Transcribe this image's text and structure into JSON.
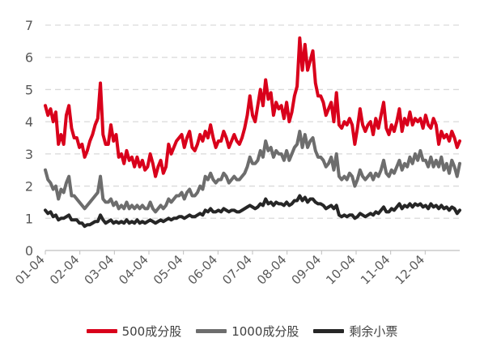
{
  "chart_data": {
    "type": "line",
    "y_ticks": [
      "0",
      "1",
      "2",
      "3",
      "4",
      "5",
      "6",
      "7"
    ],
    "ylim": [
      0,
      7
    ],
    "x_ticks": [
      "01-04",
      "02-04",
      "03-04",
      "04-04",
      "05-04",
      "06-04",
      "07-04",
      "08-04",
      "09-04",
      "10-04",
      "11-04",
      "12-04"
    ],
    "grid": "horizontal dashed",
    "legend_position": "bottom",
    "series": [
      {
        "name": "500成分股",
        "color": "#d9001b",
        "values": [
          4.5,
          4.2,
          4.4,
          4.0,
          4.3,
          3.3,
          3.6,
          3.3,
          4.2,
          4.5,
          3.8,
          3.5,
          3.5,
          3.2,
          3.3,
          2.9,
          3.1,
          3.4,
          3.6,
          3.9,
          4.1,
          5.2,
          3.6,
          3.3,
          3.3,
          3.9,
          3.4,
          3.6,
          2.9,
          3.0,
          2.7,
          3.1,
          2.8,
          2.9,
          2.6,
          2.9,
          2.6,
          2.8,
          2.5,
          2.6,
          3.0,
          2.7,
          2.3,
          2.6,
          2.8,
          2.4,
          2.6,
          3.3,
          3.0,
          3.2,
          3.4,
          3.5,
          3.6,
          3.2,
          3.5,
          3.7,
          3.2,
          3.1,
          3.3,
          3.6,
          3.4,
          3.7,
          3.5,
          3.9,
          3.5,
          3.2,
          3.4,
          3.4,
          3.7,
          3.5,
          3.2,
          3.4,
          3.6,
          3.4,
          3.3,
          3.5,
          3.8,
          4.2,
          4.8,
          4.2,
          4.0,
          4.5,
          5.0,
          4.5,
          5.3,
          4.7,
          4.9,
          4.2,
          4.6,
          4.4,
          4.5,
          4.1,
          4.6,
          4.0,
          4.3,
          4.8,
          5.1,
          6.6,
          5.6,
          6.4,
          5.6,
          5.9,
          6.2,
          5.2,
          4.8,
          4.8,
          4.6,
          4.2,
          4.4,
          4.6,
          4.0,
          4.9,
          3.9,
          3.8,
          4.0,
          3.9,
          4.1,
          3.9,
          3.3,
          3.8,
          4.4,
          3.9,
          3.7,
          3.9,
          4.0,
          3.6,
          4.1,
          3.8,
          4.2,
          4.6,
          3.8,
          3.6,
          3.9,
          3.7,
          4.0,
          4.4,
          3.7,
          4.1,
          3.9,
          4.3,
          3.9,
          4.1,
          4.0,
          4.1,
          3.8,
          4.2,
          3.9,
          3.8,
          4.1,
          3.9,
          3.3,
          3.7,
          3.5,
          3.6,
          3.4,
          3.7,
          3.5,
          3.2,
          3.4
        ]
      },
      {
        "name": "1000成分股",
        "color": "#6d6d6d",
        "values": [
          2.5,
          2.2,
          2.1,
          1.9,
          2.0,
          1.6,
          1.9,
          1.8,
          2.1,
          2.3,
          1.7,
          1.7,
          1.6,
          1.5,
          1.4,
          1.3,
          1.4,
          1.5,
          1.6,
          1.7,
          1.8,
          2.3,
          1.6,
          1.5,
          1.5,
          1.6,
          1.4,
          1.5,
          1.3,
          1.4,
          1.3,
          1.5,
          1.3,
          1.4,
          1.3,
          1.4,
          1.3,
          1.4,
          1.3,
          1.3,
          1.5,
          1.3,
          1.2,
          1.3,
          1.4,
          1.3,
          1.4,
          1.6,
          1.5,
          1.6,
          1.7,
          1.7,
          1.8,
          1.6,
          1.8,
          1.9,
          1.7,
          1.7,
          1.8,
          2.0,
          1.9,
          2.3,
          2.2,
          2.4,
          2.2,
          2.1,
          2.2,
          2.2,
          2.4,
          2.3,
          2.1,
          2.2,
          2.3,
          2.2,
          2.2,
          2.3,
          2.4,
          2.6,
          2.9,
          2.7,
          2.7,
          2.8,
          3.1,
          2.9,
          3.4,
          3.1,
          3.2,
          2.9,
          3.1,
          3.0,
          3.0,
          2.8,
          3.1,
          2.8,
          3.0,
          3.2,
          3.3,
          3.7,
          3.2,
          3.6,
          3.2,
          3.4,
          3.5,
          3.1,
          2.9,
          2.9,
          2.8,
          2.6,
          2.7,
          2.9,
          2.5,
          3.0,
          2.3,
          2.2,
          2.3,
          2.2,
          2.4,
          2.3,
          2.0,
          2.2,
          2.5,
          2.3,
          2.2,
          2.3,
          2.4,
          2.2,
          2.4,
          2.3,
          2.5,
          2.8,
          2.4,
          2.3,
          2.5,
          2.4,
          2.6,
          2.8,
          2.5,
          2.7,
          2.6,
          2.9,
          2.7,
          3.0,
          2.8,
          3.1,
          2.8,
          2.8,
          2.6,
          2.9,
          2.6,
          2.8,
          2.6,
          2.9,
          2.5,
          2.7,
          2.4,
          2.8,
          2.6,
          2.3,
          2.7
        ]
      },
      {
        "name": "剩余小票",
        "color": "#262626",
        "values": [
          1.25,
          1.15,
          1.2,
          1.05,
          1.1,
          0.95,
          1.0,
          1.0,
          1.05,
          1.1,
          0.95,
          0.95,
          0.95,
          0.85,
          0.85,
          0.75,
          0.8,
          0.8,
          0.85,
          0.9,
          0.9,
          1.1,
          0.95,
          0.85,
          0.9,
          0.95,
          0.85,
          0.9,
          0.85,
          0.9,
          0.85,
          0.95,
          0.85,
          0.9,
          0.85,
          0.95,
          0.85,
          0.9,
          0.85,
          0.9,
          0.95,
          0.9,
          0.85,
          0.9,
          0.95,
          0.9,
          0.95,
          1.0,
          0.95,
          1.0,
          1.0,
          1.05,
          1.05,
          1.0,
          1.05,
          1.1,
          1.05,
          1.05,
          1.1,
          1.15,
          1.1,
          1.25,
          1.2,
          1.3,
          1.2,
          1.2,
          1.25,
          1.2,
          1.3,
          1.25,
          1.2,
          1.25,
          1.25,
          1.2,
          1.2,
          1.25,
          1.3,
          1.35,
          1.4,
          1.35,
          1.3,
          1.35,
          1.45,
          1.4,
          1.6,
          1.45,
          1.5,
          1.4,
          1.5,
          1.45,
          1.45,
          1.4,
          1.5,
          1.4,
          1.45,
          1.55,
          1.55,
          1.7,
          1.55,
          1.65,
          1.5,
          1.6,
          1.6,
          1.5,
          1.45,
          1.45,
          1.4,
          1.3,
          1.35,
          1.4,
          1.3,
          1.4,
          1.1,
          1.05,
          1.1,
          1.05,
          1.1,
          1.1,
          1.0,
          1.05,
          1.15,
          1.1,
          1.05,
          1.1,
          1.15,
          1.1,
          1.2,
          1.15,
          1.25,
          1.35,
          1.2,
          1.2,
          1.3,
          1.25,
          1.35,
          1.45,
          1.3,
          1.4,
          1.35,
          1.45,
          1.35,
          1.45,
          1.4,
          1.45,
          1.35,
          1.4,
          1.3,
          1.45,
          1.35,
          1.4,
          1.3,
          1.4,
          1.3,
          1.35,
          1.25,
          1.35,
          1.3,
          1.15,
          1.25
        ]
      }
    ]
  }
}
